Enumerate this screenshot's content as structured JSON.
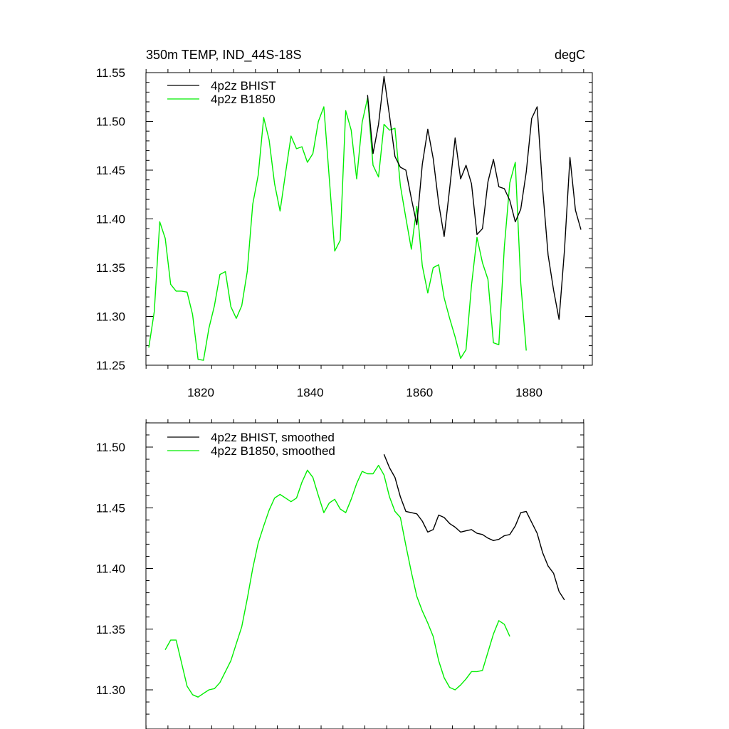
{
  "chart_data": [
    {
      "type": "line",
      "title": "350m TEMP, IND_44S-18S",
      "units": "degC",
      "xlabel": "",
      "ylabel": "",
      "xlim": [
        1810,
        1890
      ],
      "ylim": [
        11.25,
        11.55
      ],
      "x_ticks": [
        1820,
        1840,
        1860,
        1880
      ],
      "y_ticks": [
        11.25,
        11.3,
        11.35,
        11.4,
        11.45,
        11.5,
        11.55
      ],
      "x_tick_labels": [
        "1820",
        "1840",
        "1860",
        "1880"
      ],
      "y_tick_labels": [
        "11.25",
        "11.30",
        "11.35",
        "11.40",
        "11.45",
        "11.50",
        "11.55"
      ],
      "legend_position": "top-left",
      "series": [
        {
          "name": "4p2z BHIST",
          "color": "#000000",
          "x": [
            1850.5,
            1851.5,
            1852.5,
            1853.5,
            1854.5,
            1855.5,
            1856.5,
            1857.5,
            1858.5,
            1859.5,
            1860.5,
            1861.5,
            1862.5,
            1863.5,
            1864.5,
            1865.5,
            1866.5,
            1867.5,
            1868.5,
            1869.5,
            1870.5,
            1871.5,
            1872.5,
            1873.5,
            1874.5,
            1875.5,
            1876.5,
            1877.5,
            1878.5,
            1879.5,
            1880.5,
            1881.5,
            1882.5,
            1883.5,
            1884.5,
            1885.5,
            1886.5,
            1887.5,
            1888.5,
            1889.5
          ],
          "y": [
            11.527,
            11.467,
            11.497,
            11.546,
            11.506,
            11.464,
            11.453,
            11.45,
            11.421,
            11.394,
            11.456,
            11.492,
            11.462,
            11.416,
            11.382,
            11.431,
            11.483,
            11.441,
            11.455,
            11.436,
            11.384,
            11.39,
            11.438,
            11.461,
            11.433,
            11.431,
            11.419,
            11.397,
            11.41,
            11.448,
            11.503,
            11.515,
            11.431,
            11.363,
            11.327,
            11.297,
            11.368,
            11.463,
            11.409,
            11.389
          ]
        },
        {
          "name": "4p2z B1850",
          "color": "#00ee00",
          "x": [
            1810.5,
            1811.5,
            1812.5,
            1813.5,
            1814.5,
            1815.5,
            1816.5,
            1817.5,
            1818.5,
            1819.5,
            1820.5,
            1821.5,
            1822.5,
            1823.5,
            1824.5,
            1825.5,
            1826.5,
            1827.5,
            1828.5,
            1829.5,
            1830.5,
            1831.5,
            1832.5,
            1833.5,
            1834.5,
            1835.5,
            1836.5,
            1837.5,
            1838.5,
            1839.5,
            1840.5,
            1841.5,
            1842.5,
            1843.5,
            1844.5,
            1845.5,
            1846.5,
            1847.5,
            1848.5,
            1849.5,
            1850.5,
            1851.5,
            1852.5,
            1853.5,
            1854.5,
            1855.5,
            1856.5,
            1857.5,
            1858.5,
            1859.5,
            1860.5,
            1861.5,
            1862.5,
            1863.5,
            1864.5,
            1865.5,
            1866.5,
            1867.5,
            1868.5,
            1869.5,
            1870.5,
            1871.5,
            1872.5,
            1873.5,
            1874.5,
            1875.5,
            1876.5,
            1877.5,
            1878.5,
            1879.5
          ],
          "y": [
            11.268,
            11.305,
            11.397,
            11.38,
            11.333,
            11.326,
            11.326,
            11.325,
            11.302,
            11.256,
            11.255,
            11.288,
            11.311,
            11.343,
            11.346,
            11.31,
            11.298,
            11.311,
            11.346,
            11.415,
            11.445,
            11.504,
            11.481,
            11.436,
            11.408,
            11.447,
            11.485,
            11.472,
            11.474,
            11.458,
            11.467,
            11.5,
            11.515,
            11.441,
            11.367,
            11.378,
            11.511,
            11.491,
            11.441,
            11.499,
            11.524,
            11.455,
            11.443,
            11.497,
            11.491,
            11.493,
            11.434,
            11.401,
            11.369,
            11.413,
            11.352,
            11.324,
            11.35,
            11.353,
            11.319,
            11.298,
            11.279,
            11.257,
            11.266,
            11.332,
            11.381,
            11.355,
            11.338,
            11.273,
            11.271,
            11.371,
            11.437,
            11.458,
            11.334,
            11.265
          ]
        }
      ]
    },
    {
      "type": "line",
      "title": "",
      "xlabel": "",
      "ylabel": "",
      "xlim": [
        1810,
        1890
      ],
      "ylim": [
        11.28,
        11.52
      ],
      "x_ticks": [
        1820,
        1840,
        1860,
        1880
      ],
      "y_ticks": [
        11.3,
        11.35,
        11.4,
        11.45,
        11.5
      ],
      "y_tick_labels": [
        "11.30",
        "11.35",
        "11.40",
        "11.45",
        "11.50"
      ],
      "legend_position": "top-left",
      "series": [
        {
          "name": "4p2z BHIST, smoothed",
          "color": "#000000",
          "x": [
            1853.5,
            1854.5,
            1855.5,
            1856.5,
            1857.5,
            1858.5,
            1859.5,
            1860.5,
            1861.5,
            1862.5,
            1863.5,
            1864.5,
            1865.5,
            1866.5,
            1867.5,
            1868.5,
            1869.5,
            1870.5,
            1871.5,
            1872.5,
            1873.5,
            1874.5,
            1875.5,
            1876.5,
            1877.5,
            1878.5,
            1879.5,
            1880.5,
            1881.5,
            1882.5,
            1883.5,
            1884.5,
            1885.5,
            1886.5
          ],
          "y": [
            11.494,
            11.483,
            11.475,
            11.459,
            11.447,
            11.446,
            11.445,
            11.439,
            11.43,
            11.432,
            11.444,
            11.442,
            11.437,
            11.434,
            11.43,
            11.431,
            11.432,
            11.429,
            11.428,
            11.425,
            11.423,
            11.424,
            11.427,
            11.428,
            11.435,
            11.446,
            11.447,
            11.438,
            11.429,
            11.413,
            11.402,
            11.396,
            11.381,
            11.374
          ]
        },
        {
          "name": "4p2z B1850, smoothed",
          "color": "#00ee00",
          "x": [
            1813.5,
            1814.5,
            1815.5,
            1816.5,
            1817.5,
            1818.5,
            1819.5,
            1820.5,
            1821.5,
            1822.5,
            1823.5,
            1824.5,
            1825.5,
            1826.5,
            1827.5,
            1828.5,
            1829.5,
            1830.5,
            1831.5,
            1832.5,
            1833.5,
            1834.5,
            1835.5,
            1836.5,
            1837.5,
            1838.5,
            1839.5,
            1840.5,
            1841.5,
            1842.5,
            1843.5,
            1844.5,
            1845.5,
            1846.5,
            1847.5,
            1848.5,
            1849.5,
            1850.5,
            1851.5,
            1852.5,
            1853.5,
            1854.5,
            1855.5,
            1856.5,
            1857.5,
            1858.5,
            1859.5,
            1860.5,
            1861.5,
            1862.5,
            1863.5,
            1864.5,
            1865.5,
            1866.5,
            1867.5,
            1868.5,
            1869.5,
            1870.5,
            1871.5,
            1872.5,
            1873.5,
            1874.5,
            1875.5,
            1876.5
          ],
          "y": [
            11.333,
            11.341,
            11.341,
            11.322,
            11.303,
            11.296,
            11.294,
            11.297,
            11.3,
            11.301,
            11.306,
            11.315,
            11.324,
            11.338,
            11.352,
            11.375,
            11.4,
            11.421,
            11.435,
            11.448,
            11.458,
            11.461,
            11.458,
            11.455,
            11.458,
            11.471,
            11.481,
            11.475,
            11.46,
            11.446,
            11.454,
            11.457,
            11.449,
            11.446,
            11.457,
            11.47,
            11.48,
            11.478,
            11.478,
            11.485,
            11.477,
            11.459,
            11.447,
            11.442,
            11.419,
            11.397,
            11.377,
            11.365,
            11.355,
            11.344,
            11.324,
            11.31,
            11.302,
            11.3,
            11.304,
            11.309,
            11.315,
            11.315,
            11.316,
            11.331,
            11.346,
            11.357,
            11.354,
            11.344
          ]
        }
      ]
    }
  ]
}
